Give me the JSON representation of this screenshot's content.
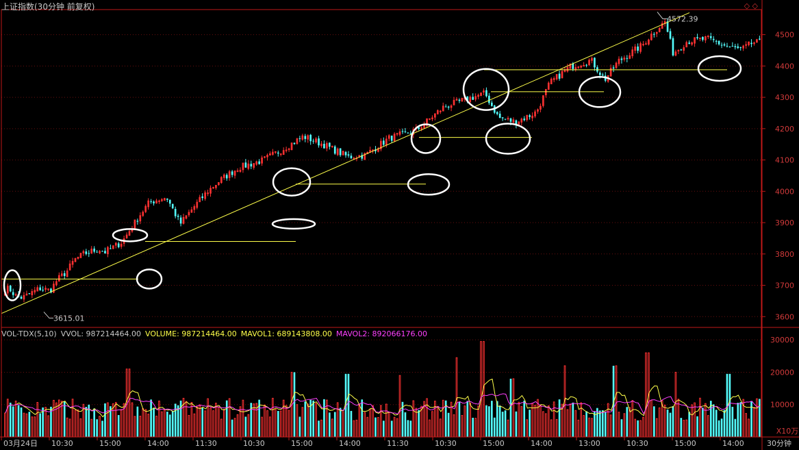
{
  "header": {
    "title": "上证指数(30分钟 前复权)",
    "corner_icons": "◇ ◇"
  },
  "volume_header": {
    "indicator": "VOL-TDX(5,10)",
    "vvol": "VVOL: 987214464.00",
    "volume": "VOLUME: 987214464.00",
    "mavol1": "MAVOL1: 689143808.00",
    "mavol2": "MAVOL2: 892066176.00"
  },
  "price_axis": {
    "ticks": [
      "4500",
      "4400",
      "4300",
      "4200",
      "4100",
      "4000",
      "3900",
      "3800",
      "3700",
      "3600"
    ]
  },
  "volume_axis": {
    "ticks": [
      "30000",
      "20000",
      "10000"
    ],
    "unit": "X10万"
  },
  "period_label": "30分钟",
  "time_axis": [
    "03月24日",
    "10:30",
    "15:00",
    "14:00",
    "11:30",
    "10:30",
    "15:00",
    "14:00",
    "11:30",
    "10:30",
    "15:00",
    "14:00",
    "13:00",
    "10:30",
    "15:00",
    "14:00"
  ],
  "colors": {
    "up": "#ff3232",
    "down": "#54fcfc",
    "axis": "#c01818",
    "grid": "#6a0f0f",
    "axis_text": "#d23a3a",
    "annotation_line": "#ffff4a",
    "annotation_circle": "#ffffff",
    "mavol1": "#ffff4a",
    "mavol2": "#ff40ff"
  },
  "chart_data": {
    "type": "candlestick",
    "price_range": [
      3570,
      4580
    ],
    "volume_range": [
      0,
      33000
    ],
    "bar_count": 280,
    "anchors": [
      [
        0,
        3680
      ],
      [
        10,
        3690
      ],
      [
        20,
        3665
      ],
      [
        30,
        3660
      ],
      [
        40,
        3672
      ],
      [
        55,
        3690
      ],
      [
        70,
        3683
      ],
      [
        80,
        3716
      ],
      [
        95,
        3746
      ],
      [
        105,
        3780
      ],
      [
        120,
        3801
      ],
      [
        140,
        3815
      ],
      [
        150,
        3806
      ],
      [
        175,
        3838
      ],
      [
        200,
        3921
      ],
      [
        215,
        3965
      ],
      [
        240,
        3981
      ],
      [
        260,
        3896
      ],
      [
        280,
        3950
      ],
      [
        300,
        4000
      ],
      [
        320,
        4038
      ],
      [
        345,
        4075
      ],
      [
        380,
        4098
      ],
      [
        405,
        4128
      ],
      [
        440,
        4175
      ],
      [
        470,
        4148
      ],
      [
        505,
        4110
      ],
      [
        530,
        4115
      ],
      [
        565,
        4169
      ],
      [
        605,
        4195
      ],
      [
        645,
        4269
      ],
      [
        680,
        4295
      ],
      [
        705,
        4312
      ],
      [
        725,
        4235
      ],
      [
        750,
        4221
      ],
      [
        780,
        4252
      ],
      [
        800,
        4346
      ],
      [
        830,
        4398
      ],
      [
        860,
        4418
      ],
      [
        880,
        4356
      ],
      [
        900,
        4415
      ],
      [
        935,
        4466
      ],
      [
        950,
        4505
      ],
      [
        968,
        4541
      ],
      [
        980,
        4440
      ],
      [
        1000,
        4478
      ],
      [
        1030,
        4487
      ],
      [
        1060,
        4461
      ],
      [
        1080,
        4452
      ],
      [
        1096,
        4474
      ]
    ],
    "extremes": [
      {
        "label": "4572.39",
        "price": 4572.39,
        "bar_pos": 958
      },
      {
        "label": "3615.01",
        "price": 3615.01,
        "bar_pos": 62
      }
    ],
    "trendline": {
      "x": [
        0,
        1005
      ],
      "y": [
        3610,
        4570
      ]
    },
    "support_lines": [
      {
        "x": [
          0,
          200
        ],
        "y": 3720
      },
      {
        "x": [
          210,
          430
        ],
        "y": 3840
      },
      {
        "x": [
          430,
          620
        ],
        "y": 4023
      },
      {
        "x": [
          610,
          775
        ],
        "y": 4172
      },
      {
        "x": [
          705,
          880
        ],
        "y": 4388
      },
      {
        "x": [
          715,
          880
        ],
        "y": 4318
      },
      {
        "x": [
          880,
          1060
        ],
        "y": 4388
      }
    ],
    "circled_spots": [
      {
        "x": 16,
        "y": 3700,
        "rx": 12,
        "ry": 22
      },
      {
        "x": 188,
        "y": 3860,
        "rx": 25,
        "ry": 9
      },
      {
        "x": 216,
        "y": 3720,
        "rx": 18,
        "ry": 14
      },
      {
        "x": 424,
        "y": 4030,
        "rx": 27,
        "ry": 20
      },
      {
        "x": 427,
        "y": 3896,
        "rx": 31,
        "ry": 7
      },
      {
        "x": 620,
        "y": 4168,
        "rx": 21,
        "ry": 21
      },
      {
        "x": 624,
        "y": 4022,
        "rx": 30,
        "ry": 15
      },
      {
        "x": 708,
        "y": 4325,
        "rx": 33,
        "ry": 30
      },
      {
        "x": 740,
        "y": 4168,
        "rx": 32,
        "ry": 22
      },
      {
        "x": 874,
        "y": 4317,
        "rx": 30,
        "ry": 22
      },
      {
        "x": 1049,
        "y": 4392,
        "rx": 31,
        "ry": 18
      }
    ],
    "volume_spikes": [
      {
        "x": 184,
        "v": 21000
      },
      {
        "x": 424,
        "v": 20000
      },
      {
        "x": 503,
        "v": 19500
      },
      {
        "x": 580,
        "v": 19000
      },
      {
        "x": 664,
        "v": 24500
      },
      {
        "x": 702,
        "v": 29500
      },
      {
        "x": 744,
        "v": 18000
      },
      {
        "x": 822,
        "v": 22000
      },
      {
        "x": 895,
        "v": 22000
      },
      {
        "x": 941,
        "v": 26000
      },
      {
        "x": 983,
        "v": 20000
      },
      {
        "x": 1060,
        "v": 19500
      }
    ]
  }
}
